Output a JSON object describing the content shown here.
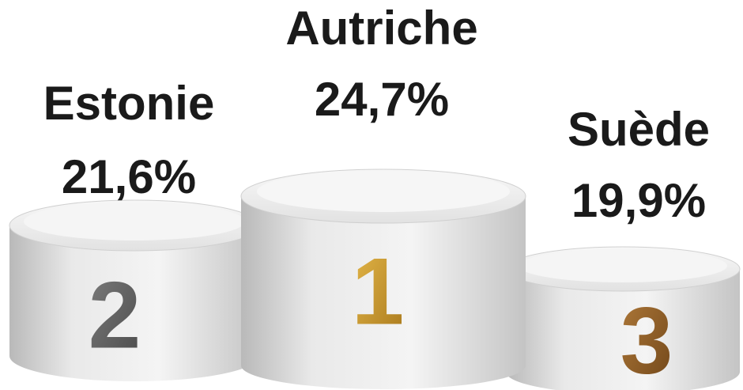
{
  "podium": [
    {
      "rank": "2",
      "country": "Estonie",
      "share": "21,6%"
    },
    {
      "rank": "1",
      "country": "Autriche",
      "share": "24,7%"
    },
    {
      "rank": "3",
      "country": "Suède",
      "share": "19,9%"
    }
  ]
}
